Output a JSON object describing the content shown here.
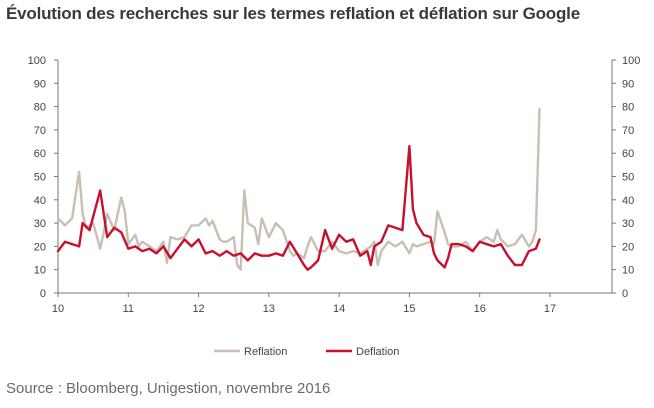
{
  "chart_data": {
    "type": "line",
    "title": "Évolution des recherches sur les termes reflation et déflation sur Google",
    "source": "Source   : Bloomberg, Unigestion, novembre 2016",
    "xlabel": "",
    "ylabel": "",
    "xlim": [
      10,
      17
    ],
    "ylim": [
      0,
      100
    ],
    "x_ticks": [
      "10",
      "11",
      "12",
      "13",
      "14",
      "15",
      "16",
      "17"
    ],
    "y_ticks": [
      "0",
      "10",
      "20",
      "30",
      "40",
      "50",
      "60",
      "70",
      "80",
      "90",
      "100"
    ],
    "legend_position": "bottom-center",
    "series": [
      {
        "name": "Reflation",
        "color": "#c8c0b2",
        "x": [
          10.0,
          10.1,
          10.2,
          10.3,
          10.35,
          10.4,
          10.5,
          10.6,
          10.65,
          10.7,
          10.8,
          10.9,
          10.95,
          11.0,
          11.1,
          11.15,
          11.2,
          11.3,
          11.4,
          11.5,
          11.55,
          11.6,
          11.7,
          11.8,
          11.9,
          12.0,
          12.1,
          12.15,
          12.2,
          12.3,
          12.35,
          12.4,
          12.5,
          12.55,
          12.6,
          12.65,
          12.7,
          12.8,
          12.85,
          12.9,
          13.0,
          13.1,
          13.2,
          13.3,
          13.35,
          13.4,
          13.5,
          13.55,
          13.6,
          13.7,
          13.8,
          13.9,
          14.0,
          14.1,
          14.2,
          14.3,
          14.4,
          14.45,
          14.5,
          14.55,
          14.6,
          14.7,
          14.8,
          14.9,
          15.0,
          15.05,
          15.1,
          15.2,
          15.3,
          15.35,
          15.4,
          15.5,
          15.55,
          15.6,
          15.7,
          15.8,
          15.9,
          16.0,
          16.1,
          16.2,
          16.25,
          16.3,
          16.4,
          16.5,
          16.6,
          16.7,
          16.75,
          16.8,
          16.85
        ],
        "values": [
          32,
          29,
          32,
          52,
          34,
          28,
          30,
          19,
          26,
          34,
          27,
          41,
          35,
          21,
          25,
          20,
          22,
          20,
          18,
          22,
          13,
          24,
          23,
          24,
          29,
          29,
          32,
          29,
          31,
          23,
          22,
          22,
          24,
          12,
          10,
          44,
          30,
          28,
          21,
          32,
          24,
          30,
          27,
          18,
          16,
          17,
          15,
          20,
          24,
          18,
          18,
          22,
          18,
          17,
          18,
          17,
          19,
          20,
          22,
          12,
          18,
          22,
          20,
          22,
          17,
          21,
          20,
          21,
          22,
          21,
          35,
          26,
          21,
          20,
          20,
          22,
          18,
          22,
          24,
          22,
          27,
          23,
          20,
          21,
          25,
          20,
          22,
          27,
          79
        ]
      },
      {
        "name": "Deflation",
        "color": "#c8102e",
        "x": [
          10.0,
          10.1,
          10.2,
          10.3,
          10.35,
          10.45,
          10.6,
          10.7,
          10.8,
          10.9,
          11.0,
          11.1,
          11.2,
          11.3,
          11.4,
          11.5,
          11.6,
          11.7,
          11.8,
          11.9,
          12.0,
          12.1,
          12.2,
          12.3,
          12.4,
          12.5,
          12.6,
          12.7,
          12.8,
          12.9,
          13.0,
          13.1,
          13.2,
          13.3,
          13.4,
          13.5,
          13.55,
          13.6,
          13.7,
          13.8,
          13.9,
          14.0,
          14.1,
          14.2,
          14.3,
          14.4,
          14.45,
          14.5,
          14.6,
          14.7,
          14.8,
          14.9,
          15.0,
          15.05,
          15.1,
          15.2,
          15.3,
          15.35,
          15.4,
          15.5,
          15.55,
          15.6,
          15.7,
          15.8,
          15.9,
          16.0,
          16.1,
          16.2,
          16.3,
          16.4,
          16.5,
          16.6,
          16.7,
          16.8,
          16.85
        ],
        "values": [
          18,
          22,
          21,
          20,
          30,
          27,
          44,
          24,
          28,
          26,
          19,
          20,
          18,
          19,
          17,
          20,
          15,
          19,
          23,
          20,
          23,
          17,
          18,
          16,
          18,
          16,
          17,
          14,
          17,
          16,
          16,
          17,
          16,
          22,
          17,
          12,
          10,
          11,
          14,
          27,
          19,
          25,
          22,
          23,
          16,
          18,
          12,
          20,
          22,
          29,
          28,
          27,
          63,
          36,
          30,
          25,
          24,
          17,
          14,
          11,
          15,
          21,
          21,
          20,
          18,
          22,
          21,
          20,
          21,
          16,
          12,
          12,
          18,
          19,
          23
        ]
      }
    ]
  }
}
